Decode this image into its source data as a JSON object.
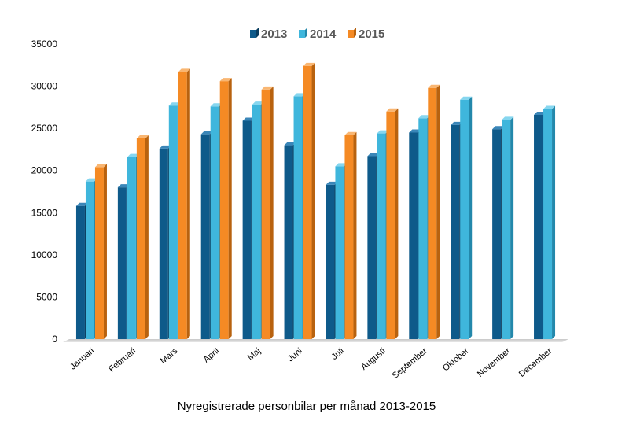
{
  "chart_data": {
    "type": "bar",
    "title": "Nyregistrerade personbilar per månad 2013-2015",
    "xlabel": "",
    "ylabel": "",
    "ylim": [
      0,
      35000
    ],
    "yticks": [
      0,
      5000,
      10000,
      15000,
      20000,
      25000,
      30000,
      35000
    ],
    "categories": [
      "Januari",
      "Februari",
      "Mars",
      "April",
      "Maj",
      "Juni",
      "Juli",
      "Augusti",
      "September",
      "Oktober",
      "November",
      "December"
    ],
    "legend_position": "top-center",
    "grid": false,
    "series": [
      {
        "name": "2013",
        "color": "#0e5a8a",
        "side_color": "#093c5e",
        "top_color": "#3a86b8",
        "values": [
          15800,
          18000,
          22600,
          24300,
          25900,
          23000,
          18300,
          21700,
          24500,
          25400,
          24900,
          26600
        ]
      },
      {
        "name": "2014",
        "color": "#3fb6dc",
        "side_color": "#2388ab",
        "top_color": "#86d6ef",
        "values": [
          18700,
          21600,
          27700,
          27600,
          27800,
          28800,
          20500,
          24400,
          26200,
          28400,
          26000,
          27300
        ]
      },
      {
        "name": "2015",
        "color": "#f58a24",
        "side_color": "#b8620f",
        "top_color": "#f9b672",
        "values": [
          20400,
          23800,
          31700,
          30600,
          29600,
          32400,
          24200,
          27000,
          29800,
          null,
          null,
          null
        ]
      }
    ]
  }
}
